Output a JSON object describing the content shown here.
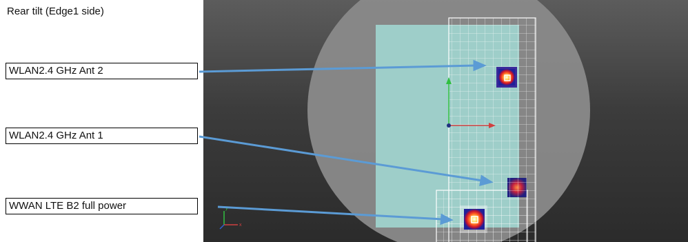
{
  "title": "Rear tilt (Edge1 side)",
  "labels": {
    "ant2": "WLAN2.4 GHz Ant 2",
    "ant1": "WLAN2.4 GHz Ant 1",
    "wwan": "WWAN LTE B2 full power"
  },
  "colors": {
    "arrow": "#5b9bd5",
    "phantom": "#8a8a8a",
    "device": "#9fd2cc",
    "grid": "#ffffff",
    "hotspot_outer": "#2a2aa0",
    "hotspot_mid": "#e03020",
    "hotspot_core": "#ffe060"
  }
}
